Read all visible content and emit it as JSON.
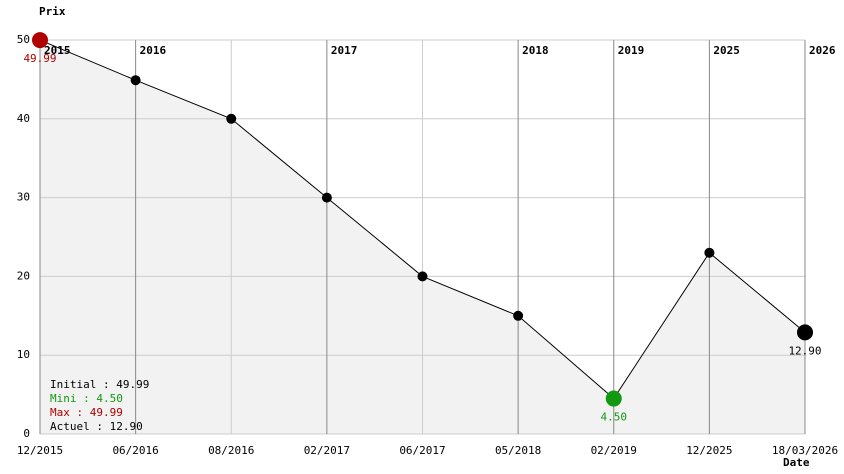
{
  "chart_data": {
    "type": "line",
    "y_label": "Prix",
    "x_label": "Date",
    "categories": [
      "12/2015",
      "06/2016",
      "08/2016",
      "02/2017",
      "06/2017",
      "05/2018",
      "02/2019",
      "12/2025",
      "18/03/2026"
    ],
    "years": [
      "2015",
      "2016",
      null,
      "2017",
      null,
      "2018",
      "2019",
      "2025",
      "2026"
    ],
    "series": [
      {
        "color": "#000000",
        "values": [
          49.99,
          44.9,
          40,
          30,
          20,
          15,
          4.5,
          23,
          12.9
        ],
        "value_labels": [
          "49.99",
          null,
          null,
          null,
          null,
          null,
          "4.50",
          null,
          "12.90"
        ]
      }
    ],
    "max_color": "#b00000",
    "min_color": "#119911",
    "area_color": "#f2f2f2",
    "ylim": [
      0,
      50
    ],
    "yticks": [
      0,
      10,
      20,
      30,
      40,
      50
    ],
    "grid": true,
    "summary": [
      {
        "text": "Initial : 49.99",
        "color": "#000000"
      },
      {
        "text": "Mini : 4.50",
        "color": "#119911"
      },
      {
        "text": "Max : 49.99",
        "color": "#b00000"
      },
      {
        "text": "Actuel : 12.90",
        "color": "#000000"
      }
    ]
  }
}
